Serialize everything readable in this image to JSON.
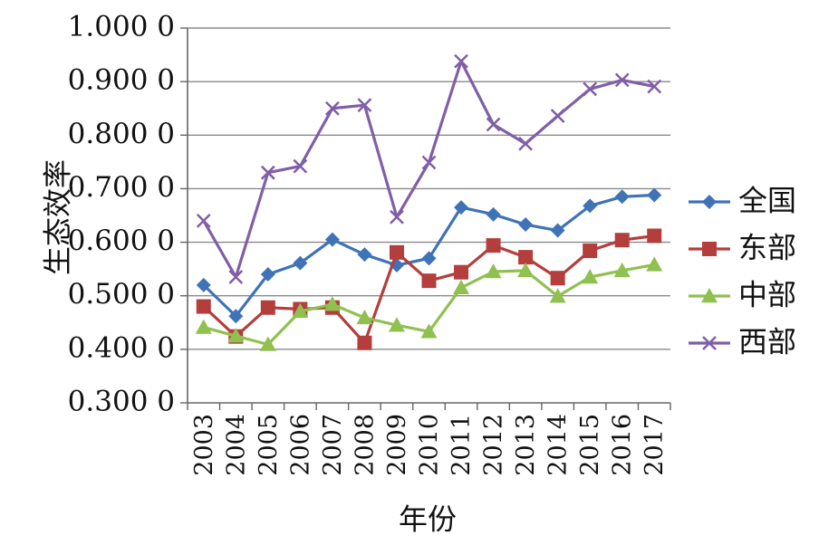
{
  "chart_data": {
    "type": "line",
    "title": "",
    "xlabel": "年份",
    "ylabel": "生态效率",
    "ylim": [
      0.3,
      1.0
    ],
    "yticks": [
      "0.300 0",
      "0.400 0",
      "0.500 0",
      "0.600 0",
      "0.700 0",
      "0.800 0",
      "0.900 0",
      "1.000 0"
    ],
    "grid": true,
    "legend_position": "right",
    "categories": [
      "2003",
      "2004",
      "2005",
      "2006",
      "2007",
      "2008",
      "2009",
      "2010",
      "2011",
      "2012",
      "2013",
      "2014",
      "2015",
      "2016",
      "2017"
    ],
    "series": [
      {
        "name": "全国",
        "marker": "diamond",
        "color": "#3f73b6",
        "values": [
          0.52,
          0.462,
          0.54,
          0.561,
          0.605,
          0.577,
          0.557,
          0.57,
          0.665,
          0.652,
          0.633,
          0.622,
          0.668,
          0.685,
          0.688
        ]
      },
      {
        "name": "东部",
        "marker": "square",
        "color": "#b43e3b",
        "values": [
          0.48,
          0.424,
          0.478,
          0.475,
          0.478,
          0.412,
          0.581,
          0.528,
          0.544,
          0.594,
          0.572,
          0.533,
          0.584,
          0.604,
          0.612
        ]
      },
      {
        "name": "中部",
        "marker": "triangle",
        "color": "#90c050",
        "values": [
          0.441,
          0.425,
          0.409,
          0.471,
          0.484,
          0.459,
          0.445,
          0.433,
          0.515,
          0.545,
          0.547,
          0.499,
          0.535,
          0.547,
          0.558
        ]
      },
      {
        "name": "西部",
        "marker": "x",
        "color": "#7f5fa8",
        "values": [
          0.64,
          0.535,
          0.73,
          0.742,
          0.85,
          0.856,
          0.647,
          0.749,
          0.938,
          0.82,
          0.784,
          0.836,
          0.886,
          0.903,
          0.891
        ]
      }
    ]
  }
}
